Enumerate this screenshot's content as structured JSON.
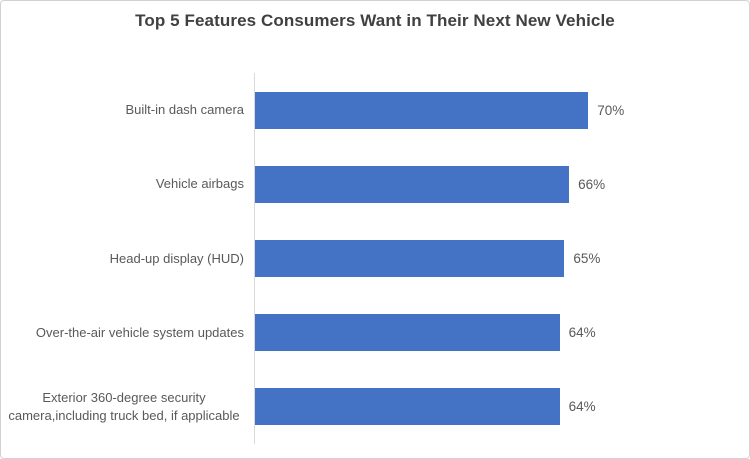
{
  "title": "Top 5 Features Consumers Want in Their Next New Vehicle",
  "chart_data": {
    "type": "bar",
    "orientation": "horizontal",
    "title": "Top 5 Features Consumers Want in Their Next New Vehicle",
    "categories": [
      "Built-in dash camera",
      "Vehicle airbags",
      "Head-up display (HUD)",
      "Over-the-air vehicle system updates",
      "Exterior 360-degree security camera,including truck bed, if applicable"
    ],
    "values": [
      70,
      66,
      65,
      64,
      64
    ],
    "value_labels": [
      "70%",
      "66%",
      "65%",
      "64%",
      "64%"
    ],
    "xlabel": "",
    "ylabel": "",
    "xlim": [
      0,
      100
    ],
    "grid": false,
    "legend": false,
    "colors": {
      "bar": "#4472c4",
      "axis_line": "#d9d9d9",
      "category_label": "#595959",
      "value_label": "#595959",
      "title": "#404040",
      "frame_border": "#d2d2d2"
    }
  }
}
